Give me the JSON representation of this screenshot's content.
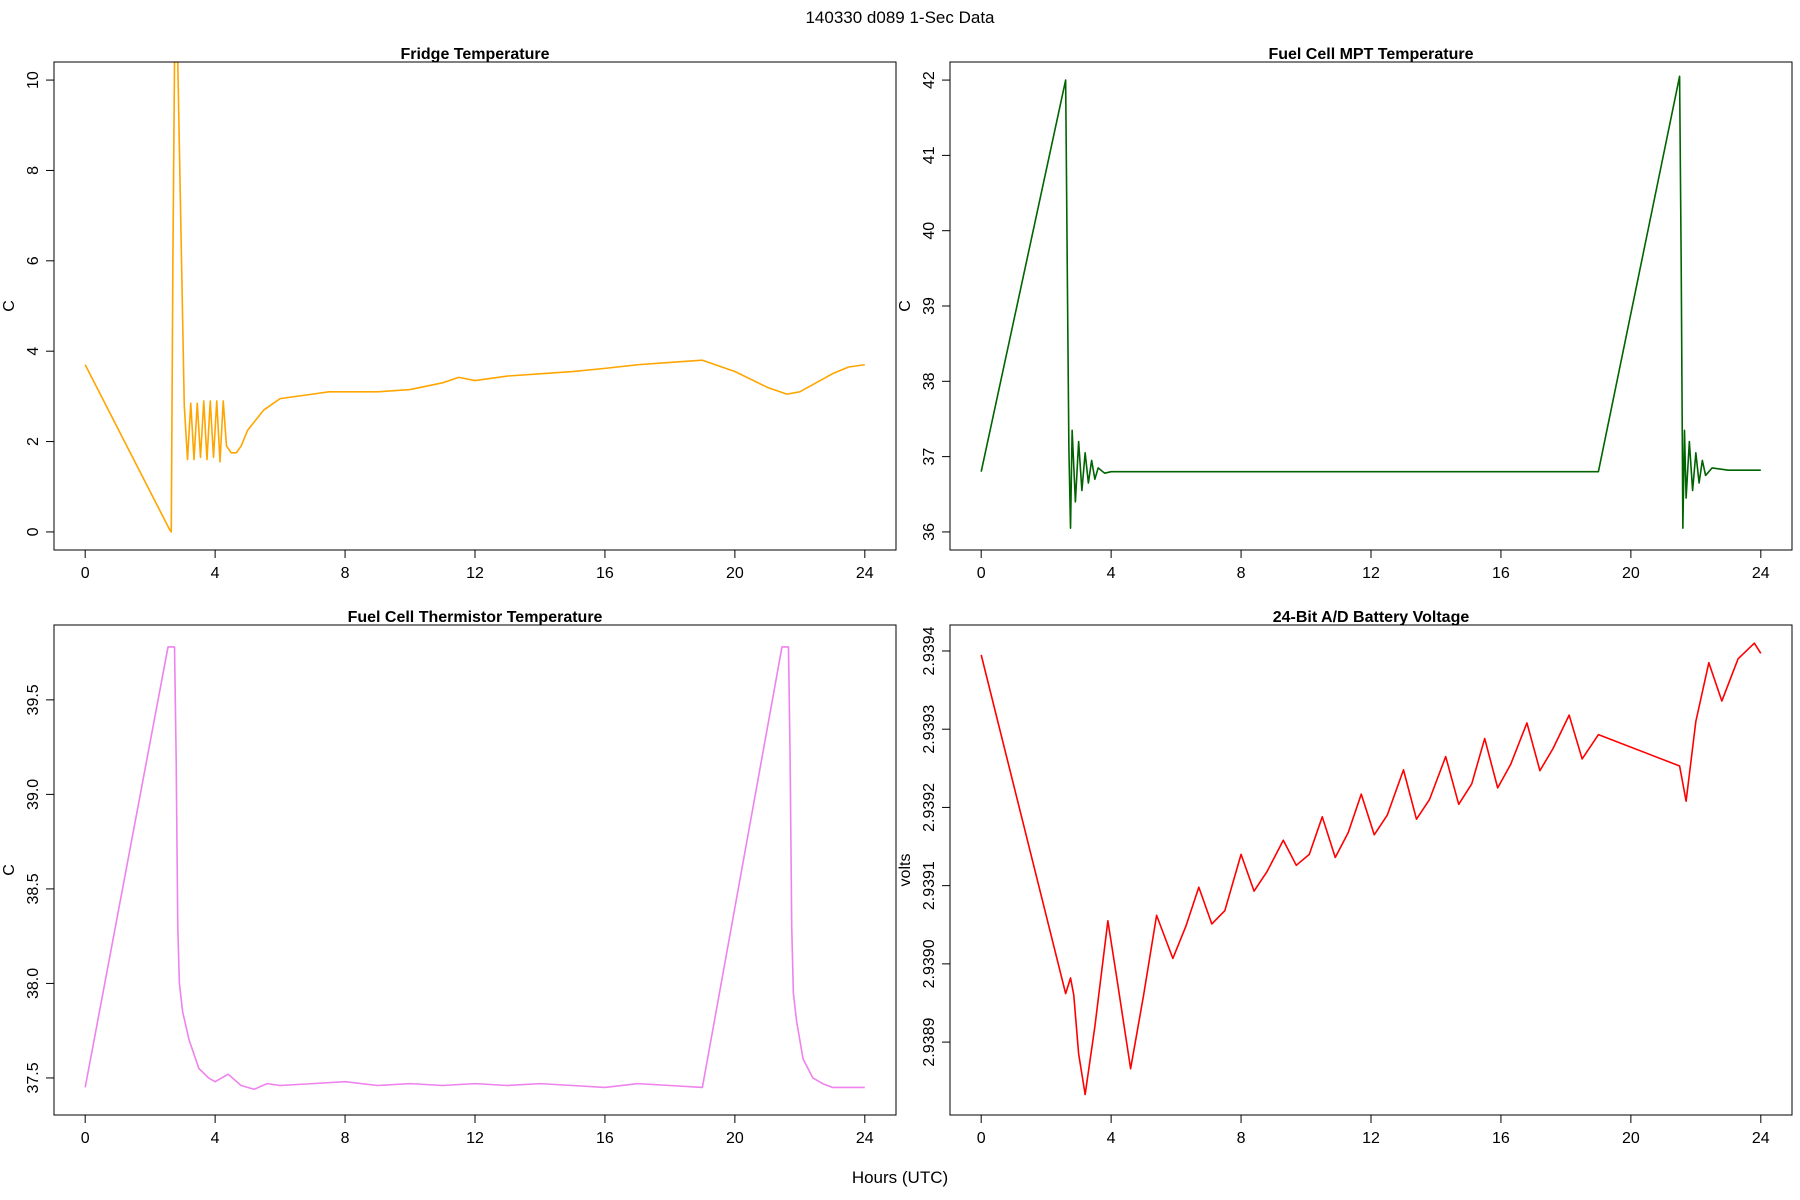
{
  "page": {
    "title": "140330   d089   1-Sec Data",
    "xlabel": "Hours (UTC)"
  },
  "chart_data": [
    {
      "type": "line",
      "title": "Fridge Temperature",
      "xlabel": "",
      "ylabel": "C",
      "xlim": [
        0,
        24
      ],
      "ylim": [
        0,
        10
      ],
      "x_ticks": [
        "0",
        "4",
        "8",
        "12",
        "16",
        "20",
        "24"
      ],
      "y_ticks": [
        "0",
        "2",
        "4",
        "6",
        "8",
        "10"
      ],
      "color": "#FFA500",
      "grid": false,
      "series": [
        {
          "x": [
            0,
            2.6,
            2.65,
            2.7,
            2.75,
            2.85,
            3.05,
            3.15,
            3.25,
            3.35,
            3.45,
            3.55,
            3.65,
            3.75,
            3.85,
            3.95,
            4.05,
            4.15,
            4.25,
            4.35,
            4.5,
            4.65,
            4.8,
            5.0,
            5.5,
            6.0,
            6.5,
            7.0,
            7.5,
            8.0,
            9.0,
            10.0,
            11.0,
            11.5,
            12.0,
            13.0,
            14.0,
            15.0,
            16.0,
            17.0,
            18.0,
            19.0,
            20.0,
            21.0,
            21.6,
            22.0,
            22.5,
            23.0,
            23.5,
            24.0
          ],
          "values": [
            3.7,
            0.05,
            0.0,
            6.0,
            10.4,
            10.4,
            2.8,
            1.6,
            2.85,
            1.6,
            2.85,
            1.65,
            2.9,
            1.6,
            2.9,
            1.65,
            2.9,
            1.55,
            2.9,
            1.9,
            1.75,
            1.75,
            1.9,
            2.25,
            2.7,
            2.95,
            3.0,
            3.05,
            3.1,
            3.1,
            3.1,
            3.15,
            3.3,
            3.42,
            3.35,
            3.45,
            3.5,
            3.55,
            3.62,
            3.7,
            3.75,
            3.8,
            3.55,
            3.2,
            3.05,
            3.1,
            3.3,
            3.5,
            3.65,
            3.7
          ]
        }
      ]
    },
    {
      "type": "line",
      "title": "Fuel Cell MPT Temperature",
      "xlabel": "",
      "ylabel": "C",
      "xlim": [
        0,
        24
      ],
      "ylim": [
        36,
        42
      ],
      "x_ticks": [
        "0",
        "4",
        "8",
        "12",
        "16",
        "20",
        "24"
      ],
      "y_ticks": [
        "36",
        "37",
        "38",
        "39",
        "40",
        "41",
        "42"
      ],
      "color": "#006400",
      "grid": false,
      "series": [
        {
          "x": [
            0,
            2.6,
            2.65,
            2.7,
            2.75,
            2.8,
            2.9,
            3.0,
            3.1,
            3.2,
            3.3,
            3.4,
            3.5,
            3.6,
            3.8,
            4.0,
            6.0,
            8.0,
            10.0,
            12.0,
            14.0,
            16.0,
            18.0,
            19.0,
            21.5,
            21.55,
            21.6,
            21.65,
            21.7,
            21.8,
            21.9,
            22.0,
            22.1,
            22.2,
            22.3,
            22.5,
            23.0,
            24.0
          ],
          "values": [
            36.8,
            42.0,
            39.5,
            37.1,
            36.05,
            37.35,
            36.4,
            37.2,
            36.55,
            37.05,
            36.65,
            36.95,
            36.7,
            36.85,
            36.78,
            36.8,
            36.8,
            36.8,
            36.8,
            36.8,
            36.8,
            36.8,
            36.8,
            36.8,
            42.05,
            39.5,
            36.05,
            37.35,
            36.45,
            37.2,
            36.55,
            37.05,
            36.65,
            36.95,
            36.75,
            36.85,
            36.82,
            36.82
          ]
        }
      ]
    },
    {
      "type": "line",
      "title": "Fuel Cell Thermistor Temperature",
      "xlabel": "",
      "ylabel": "C",
      "xlim": [
        0,
        24
      ],
      "ylim": [
        37.4,
        39.8
      ],
      "x_ticks": [
        "0",
        "4",
        "8",
        "12",
        "16",
        "20",
        "24"
      ],
      "y_ticks": [
        "37.5",
        "38.0",
        "38.5",
        "39.0",
        "39.5"
      ],
      "color": "#EE82EE",
      "grid": false,
      "series": [
        {
          "x": [
            0,
            2.55,
            2.75,
            2.8,
            2.85,
            2.9,
            3.0,
            3.2,
            3.5,
            3.8,
            4.0,
            4.4,
            4.8,
            5.2,
            5.6,
            6.0,
            7.0,
            8.0,
            9.0,
            10.0,
            11.0,
            12.0,
            13.0,
            14.0,
            15.0,
            16.0,
            17.0,
            18.0,
            19.0,
            21.45,
            21.65,
            21.7,
            21.75,
            21.8,
            21.9,
            22.1,
            22.4,
            22.7,
            23.0,
            24.0
          ],
          "values": [
            37.45,
            39.78,
            39.78,
            39.2,
            38.3,
            38.0,
            37.85,
            37.7,
            37.55,
            37.5,
            37.48,
            37.52,
            37.46,
            37.44,
            37.47,
            37.46,
            37.47,
            37.48,
            37.46,
            37.47,
            37.46,
            37.47,
            37.46,
            37.47,
            37.46,
            37.45,
            37.47,
            37.46,
            37.45,
            39.78,
            39.78,
            39.2,
            38.3,
            37.95,
            37.8,
            37.6,
            37.5,
            37.47,
            37.45,
            37.45
          ]
        }
      ]
    },
    {
      "type": "line",
      "title": "24-Bit A/D Battery Voltage",
      "xlabel": "",
      "ylabel": "volts",
      "xlim": [
        0,
        24
      ],
      "ylim": [
        2.93883,
        2.93941
      ],
      "x_ticks": [
        "0",
        "4",
        "8",
        "12",
        "16",
        "20",
        "24"
      ],
      "y_ticks": [
        "2.9389",
        "2.9390",
        "2.9391",
        "2.9392",
        "2.9393",
        "2.9394"
      ],
      "color": "#FF0000",
      "grid": false,
      "series": [
        {
          "x": [
            0,
            2.6,
            2.75,
            2.85,
            3.0,
            3.2,
            3.5,
            3.9,
            4.2,
            4.6,
            5.0,
            5.4,
            5.9,
            6.3,
            6.7,
            7.1,
            7.5,
            8.0,
            8.4,
            8.8,
            9.3,
            9.7,
            10.1,
            10.5,
            10.9,
            11.3,
            11.7,
            12.1,
            12.5,
            13.0,
            13.4,
            13.8,
            14.3,
            14.7,
            15.1,
            15.5,
            15.9,
            16.3,
            16.8,
            17.2,
            17.6,
            18.1,
            18.5,
            19.0,
            21.5,
            21.7,
            22.0,
            22.4,
            22.8,
            23.3,
            23.8,
            24.0
          ],
          "values": [
            2.939395,
            2.938962,
            2.938982,
            2.93896,
            2.938885,
            2.938833,
            2.93892,
            2.939055,
            2.938975,
            2.938866,
            2.93896,
            2.939062,
            2.939007,
            2.939048,
            2.939098,
            2.939051,
            2.939068,
            2.93914,
            2.939093,
            2.939118,
            2.939158,
            2.939126,
            2.93914,
            2.939188,
            2.939136,
            2.939168,
            2.939217,
            2.939165,
            2.93919,
            2.939248,
            2.939185,
            2.93921,
            2.939265,
            2.939204,
            2.93923,
            2.939288,
            2.939225,
            2.939255,
            2.939308,
            2.939247,
            2.939275,
            2.939318,
            2.939262,
            2.939293,
            2.939253,
            2.939208,
            2.93931,
            2.939385,
            2.939336,
            2.93939,
            2.93941,
            2.939397
          ]
        }
      ]
    }
  ]
}
